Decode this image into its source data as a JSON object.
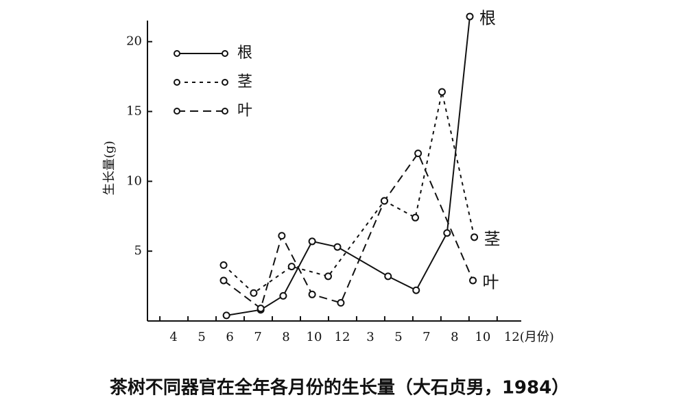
{
  "chart_data": {
    "type": "line",
    "ylabel": "生长量(g)",
    "caption": "茶树不同器官在全年各月份的生长量（大石贞男，1984）",
    "xlim": [
      -0.93,
      12.37
    ],
    "xticks": [
      {
        "value": 0,
        "label": "4"
      },
      {
        "value": 1,
        "label": "5"
      },
      {
        "value": 2,
        "label": "6"
      },
      {
        "value": 3,
        "label": "7"
      },
      {
        "value": 4,
        "label": "8"
      },
      {
        "value": 5,
        "label": "10"
      },
      {
        "value": 6,
        "label": "12"
      },
      {
        "value": 7,
        "label": "3"
      },
      {
        "value": 8,
        "label": "5"
      },
      {
        "value": 9,
        "label": "7"
      },
      {
        "value": 10,
        "label": "8"
      },
      {
        "value": 11,
        "label": "10"
      },
      {
        "value": 12,
        "label": "12(月份)"
      }
    ],
    "ylim": [
      0,
      22
    ],
    "yticks": [
      5,
      10,
      15,
      20
    ],
    "series": [
      {
        "name": "根",
        "color": "#111",
        "dash": "solid",
        "x": [
          1.88,
          3.1,
          3.9,
          4.93,
          5.83,
          7.63,
          8.63,
          9.73,
          10.54
        ],
        "values": [
          0.4,
          0.8,
          1.8,
          5.7,
          5.3,
          3.2,
          2.2,
          6.3,
          21.8
        ]
      },
      {
        "name": "茎",
        "color": "#111",
        "dash": "short",
        "x": [
          1.78,
          2.85,
          4.2,
          5.5,
          7.5,
          8.6,
          9.55,
          10.7
        ],
        "values": [
          4.0,
          2.0,
          3.9,
          3.2,
          8.6,
          7.4,
          16.4,
          6.0
        ]
      },
      {
        "name": "叶",
        "color": "#111",
        "dash": "long",
        "x": [
          1.78,
          3.1,
          3.85,
          4.93,
          5.95,
          7.5,
          8.7,
          10.65
        ],
        "values": [
          2.9,
          0.9,
          6.1,
          1.9,
          1.3,
          8.6,
          12.0,
          2.9
        ]
      }
    ]
  }
}
